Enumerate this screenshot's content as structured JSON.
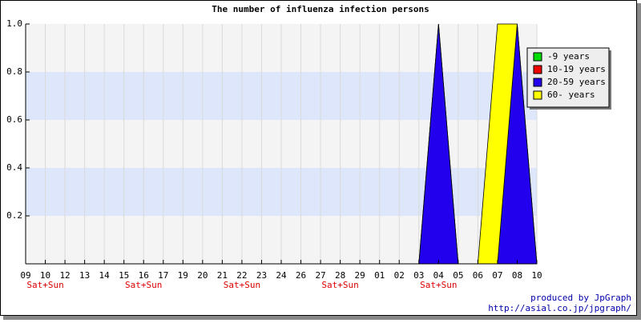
{
  "chart_data": {
    "type": "stacked_area",
    "title": "The number of influenza infection persons",
    "categories": [
      "09",
      "10",
      "12",
      "13",
      "14",
      "15",
      "16",
      "17",
      "19",
      "20",
      "21",
      "22",
      "23",
      "24",
      "26",
      "27",
      "28",
      "29",
      "01",
      "02",
      "03",
      "04",
      "05",
      "06",
      "07",
      "08",
      "10"
    ],
    "week_labels": [
      null,
      "Sat+Sun",
      null,
      null,
      null,
      null,
      "Sat+Sun",
      null,
      null,
      null,
      null,
      "Sat+Sun",
      null,
      null,
      null,
      null,
      "Sat+Sun",
      null,
      null,
      null,
      null,
      "Sat+Sun",
      null,
      null,
      null,
      null,
      null
    ],
    "series": [
      {
        "name": "-9 years",
        "color": "#00dd00",
        "values": [
          0,
          0,
          0,
          0,
          0,
          0,
          0,
          0,
          0,
          0,
          0,
          0,
          0,
          0,
          0,
          0,
          0,
          0,
          0,
          0,
          0,
          0,
          0,
          0,
          0,
          0,
          0
        ]
      },
      {
        "name": "10-19 years",
        "color": "#ee0000",
        "values": [
          0,
          0,
          0,
          0,
          0,
          0,
          0,
          0,
          0,
          0,
          0,
          0,
          0,
          0,
          0,
          0,
          0,
          0,
          0,
          0,
          0,
          0,
          0,
          0,
          0,
          0,
          0
        ]
      },
      {
        "name": "20-59 years",
        "color": "#2200ee",
        "values": [
          0,
          0,
          0,
          0,
          0,
          0,
          0,
          0,
          0,
          0,
          0,
          0,
          0,
          0,
          0,
          0,
          0,
          0,
          0,
          0,
          0,
          1,
          0,
          0,
          0,
          1,
          0
        ]
      },
      {
        "name": "60- years",
        "color": "#ffff00",
        "values": [
          0,
          0,
          0,
          0,
          0,
          0,
          0,
          0,
          0,
          0,
          0,
          0,
          0,
          0,
          0,
          0,
          0,
          0,
          0,
          0,
          0,
          0,
          0,
          0,
          1,
          0,
          0
        ]
      }
    ],
    "ylim": [
      0,
      1
    ],
    "yticks": [
      0.2,
      0.4,
      0.6,
      0.8,
      {
        "value": 1,
        "label": "1.0"
      }
    ],
    "grid": true,
    "legend": "top-right",
    "footer": [
      "produced by JpGraph",
      "http://asial.co.jp/jpgraph/"
    ]
  }
}
